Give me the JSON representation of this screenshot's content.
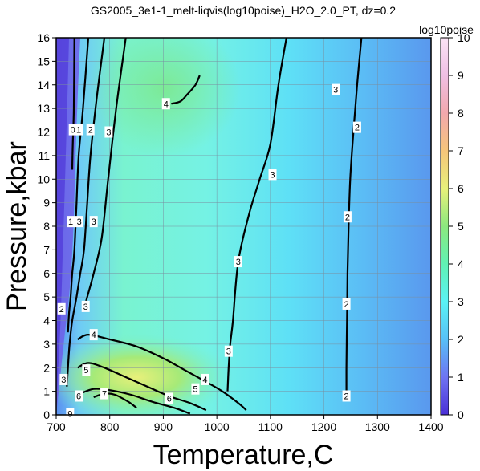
{
  "title": "GS2005_3e1-1_melt-liqvis(log10poise)_H2O_2.0_PT, dz=0.2",
  "chart_data": {
    "type": "heatmap",
    "title": "GS2005_3e1-1_melt-liqvis(log10poise)_H2O_2.0_PT, dz=0.2",
    "xlabel": "Temperature,C",
    "ylabel": "Pressure,kbar",
    "xlim": [
      700,
      1400
    ],
    "ylim": [
      0,
      16
    ],
    "xticks": [
      "700",
      "800",
      "900",
      "1000",
      "1100",
      "1200",
      "1300",
      "1400"
    ],
    "yticks": [
      "0",
      "1",
      "2",
      "3",
      "4",
      "5",
      "6",
      "7",
      "8",
      "9",
      "10",
      "11",
      "12",
      "13",
      "14",
      "15",
      "16"
    ],
    "grid": true,
    "colorbar": {
      "label": "log10poise",
      "range": [
        0,
        10
      ],
      "ticks": [
        "0",
        "1",
        "2",
        "3",
        "4",
        "5",
        "6",
        "7",
        "8",
        "9",
        "10"
      ],
      "colors": [
        "#4a2fd6",
        "#6e74f2",
        "#57c0f7",
        "#5af2f4",
        "#60f2b4",
        "#8ce87e",
        "#e8f07a",
        "#f5c57a",
        "#f2a8ad",
        "#efbfe4",
        "#fbe3f5"
      ]
    },
    "contours": [
      {
        "level": "0",
        "x": [
          734,
          733,
          731,
          730
        ],
        "y": [
          16,
          13,
          11.5,
          10.4
        ]
      },
      {
        "level": "1",
        "x": [
          760,
          750,
          742,
          738,
          734,
          730,
          727,
          724,
          722
        ],
        "y": [
          16,
          13,
          11,
          9,
          7,
          6,
          5,
          4.3,
          3.5
        ]
      },
      {
        "level": "2",
        "x": [
          790,
          776,
          764,
          758,
          752,
          745,
          738,
          730,
          725,
          722,
          720
        ],
        "y": [
          16,
          13.5,
          11,
          9,
          7,
          6,
          5,
          4,
          3,
          2,
          1.2
        ]
      },
      {
        "level": "3",
        "x": [
          830,
          812,
          797,
          785,
          770,
          758,
          752
        ],
        "y": [
          16,
          13,
          10,
          7.5,
          6,
          5,
          4.5
        ]
      },
      {
        "level": "3",
        "x": [
          1130,
          1115,
          1100,
          1080,
          1060,
          1040,
          1030,
          1025,
          1022,
          1020
        ],
        "y": [
          16,
          14,
          11.5,
          10,
          8.5,
          6.5,
          4,
          3,
          2,
          1
        ]
      },
      {
        "level": "2",
        "x": [
          1270,
          1262,
          1255,
          1249,
          1246,
          1244,
          1243,
          1242,
          1242
        ],
        "y": [
          16,
          14,
          12,
          10,
          8,
          6,
          4,
          2,
          0.6
        ]
      },
      {
        "level": "4",
        "x": [
          915,
          932,
          945,
          960,
          968
        ],
        "y": [
          13.2,
          13.3,
          13.6,
          14.0,
          14.4
        ]
      },
      {
        "level": "4",
        "x": [
          740,
          760,
          800,
          850,
          900,
          940,
          980,
          1010,
          1040,
          1055
        ],
        "y": [
          3.2,
          3.4,
          3.2,
          2.9,
          2.4,
          1.9,
          1.4,
          1.0,
          0.5,
          0.2
        ]
      },
      {
        "level": "5",
        "x": [
          740,
          760,
          790,
          830,
          870,
          910,
          950,
          980
        ],
        "y": [
          2.0,
          2.2,
          2.0,
          1.6,
          1.2,
          0.8,
          0.5,
          0.2
        ]
      },
      {
        "level": "6",
        "x": [
          745,
          770,
          800,
          840,
          880,
          920,
          950
        ],
        "y": [
          0.9,
          1.1,
          1.05,
          0.85,
          0.55,
          0.3,
          0.05
        ]
      },
      {
        "level": "7",
        "x": [
          770,
          790,
          810,
          835,
          850
        ],
        "y": [
          0.75,
          0.9,
          0.85,
          0.55,
          0.3
        ]
      }
    ],
    "contour_labels": [
      {
        "text": "0",
        "x": 731,
        "y": 12.1
      },
      {
        "text": "1",
        "x": 742,
        "y": 12.1
      },
      {
        "text": "2",
        "x": 764,
        "y": 12.1
      },
      {
        "text": "3",
        "x": 798,
        "y": 12.0
      },
      {
        "text": "1",
        "x": 727,
        "y": 8.2
      },
      {
        "text": "3",
        "x": 743,
        "y": 8.2
      },
      {
        "text": "3",
        "x": 770,
        "y": 8.2
      },
      {
        "text": "4",
        "x": 905,
        "y": 13.2
      },
      {
        "text": "3",
        "x": 1222,
        "y": 13.8
      },
      {
        "text": "2",
        "x": 1262,
        "y": 12.2
      },
      {
        "text": "3",
        "x": 1104,
        "y": 10.2
      },
      {
        "text": "2",
        "x": 1244,
        "y": 8.4
      },
      {
        "text": "3",
        "x": 1040,
        "y": 6.5
      },
      {
        "text": "2",
        "x": 1242,
        "y": 4.7
      },
      {
        "text": "3",
        "x": 1022,
        "y": 2.7
      },
      {
        "text": "2",
        "x": 1242,
        "y": 0.8
      },
      {
        "text": "2",
        "x": 710,
        "y": 4.5
      },
      {
        "text": "3",
        "x": 755,
        "y": 4.6
      },
      {
        "text": "4",
        "x": 770,
        "y": 3.4
      },
      {
        "text": "4",
        "x": 978,
        "y": 1.5
      },
      {
        "text": "5",
        "x": 756,
        "y": 1.9
      },
      {
        "text": "5",
        "x": 960,
        "y": 1.1
      },
      {
        "text": "3",
        "x": 714,
        "y": 1.5
      },
      {
        "text": "6",
        "x": 742,
        "y": 0.8
      },
      {
        "text": "6",
        "x": 911,
        "y": 0.7
      },
      {
        "text": "7",
        "x": 790,
        "y": 0.9
      },
      {
        "text": "9",
        "x": 726,
        "y": 0.05
      }
    ]
  }
}
